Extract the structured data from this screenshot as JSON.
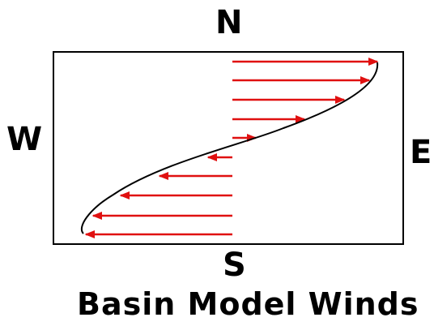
{
  "compass": {
    "north": "N",
    "south": "S",
    "east": "E",
    "west": "W"
  },
  "caption": "Basin Model Winds",
  "colors": {
    "arrow": "#e01010",
    "profile_curve": "#000000",
    "frame": "#000000"
  },
  "wind_profile": {
    "direction_top_half": "east",
    "direction_bottom_half": "west",
    "arrow_count": 12
  }
}
